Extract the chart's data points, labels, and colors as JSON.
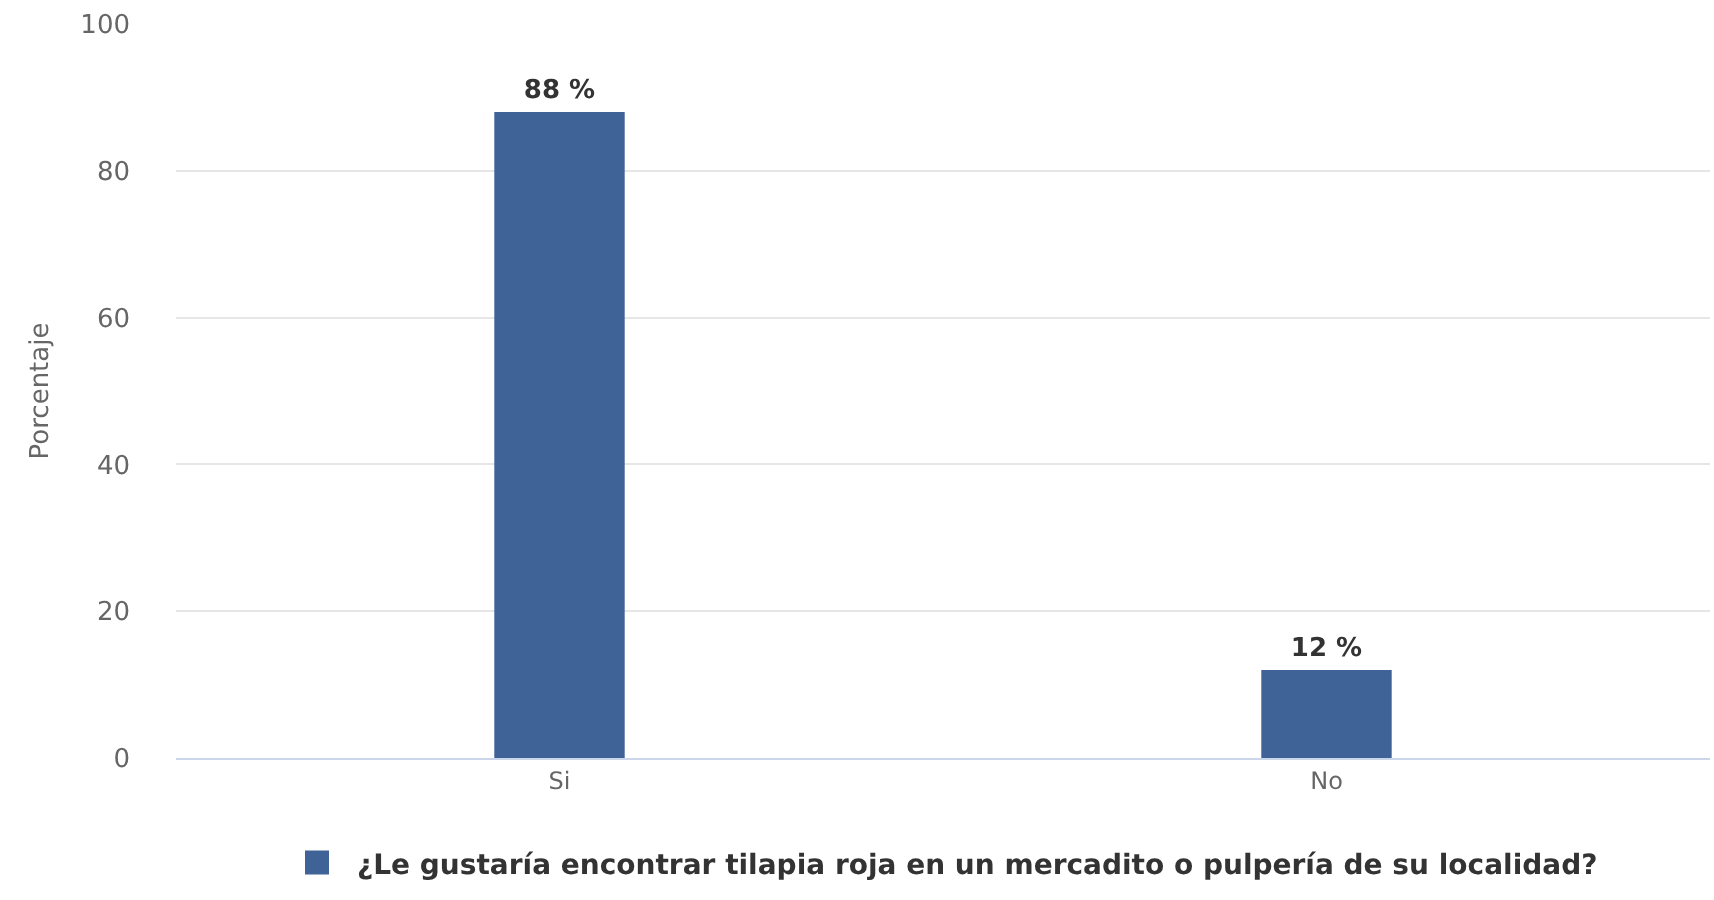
{
  "chart_data": {
    "type": "bar",
    "ylabel": "Porcentaje",
    "categories": [
      "Si",
      "No"
    ],
    "series": [
      {
        "name": "¿Le gustaría encontrar tilapia roja en un mercadito o pulpería de su localidad?",
        "color": "#3f6397",
        "values": [
          88,
          12
        ],
        "value_labels": [
          "88 %",
          "12 %"
        ]
      }
    ],
    "ylim": [
      0,
      100
    ],
    "yticks": [
      0,
      20,
      40,
      60,
      80,
      100
    ],
    "grid": "y",
    "legend": "bottom"
  }
}
